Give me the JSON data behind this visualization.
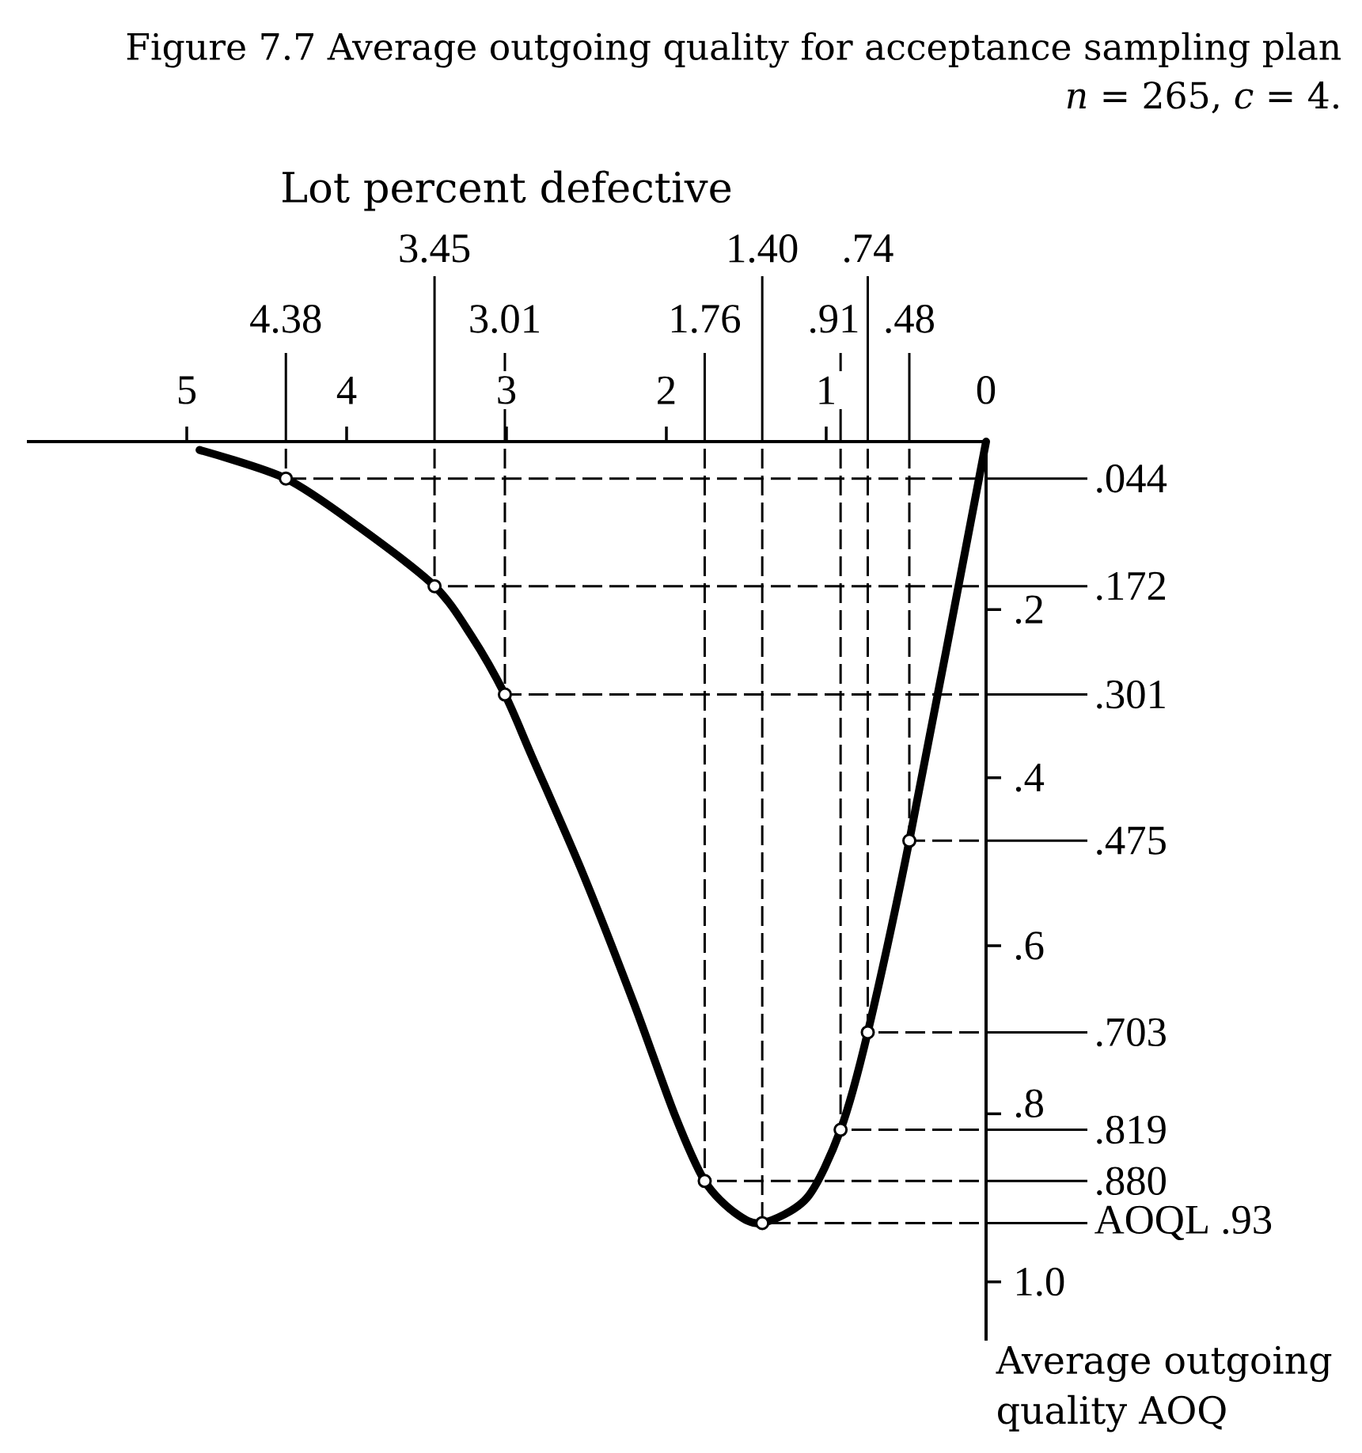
{
  "chart_data": {
    "type": "line",
    "title": "Figure 7.7 Average outgoing quality for acceptance sampling plan *n* = 265, *c* = 4.",
    "xlabel": "Lot percent defective",
    "ylabel": "Average outgoing quality AOQ",
    "xlim": [
      6.0,
      0
    ],
    "ylim": [
      1.07,
      0
    ],
    "xticks": [
      0,
      1,
      2,
      3,
      4,
      5
    ],
    "yticks": [
      {
        "value": 0.2,
        "label": ".2"
      },
      {
        "value": 0.4,
        "label": ".4"
      },
      {
        "value": 0.6,
        "label": ".6"
      },
      {
        "value": 0.8,
        "label": ".8"
      },
      {
        "value": 1.0,
        "label": "1.0"
      }
    ],
    "series": [
      {
        "color": "#000000",
        "marker": "none",
        "x": [
          0,
          0.48,
          0.74,
          0.91,
          1.12,
          1.4,
          1.57,
          1.76,
          1.95,
          2.2,
          2.52,
          2.84,
          3.01,
          3.22,
          3.45,
          3.92,
          4.38,
          4.92
        ],
        "values": [
          0,
          0.475,
          0.703,
          0.819,
          0.9,
          0.93,
          0.918,
          0.88,
          0.8,
          0.67,
          0.515,
          0.375,
          0.301,
          0.231,
          0.172,
          0.102,
          0.044,
          0.01
        ]
      },
      {
        "type": "scatter",
        "color": "#000000",
        "marker": "circle",
        "x": [
          0.48,
          0.74,
          0.91,
          1.4,
          1.76,
          3.01,
          3.45,
          4.38
        ],
        "values": [
          0.475,
          0.703,
          0.819,
          0.93,
          0.88,
          0.301,
          0.172,
          0.044
        ]
      }
    ],
    "ref_lines": [
      {
        "axis": "x",
        "value": 0.48,
        "label": ".48",
        "line_style": "dashed"
      },
      {
        "axis": "x",
        "value": 0.74,
        "label": ".74",
        "line_style": "dashed"
      },
      {
        "axis": "x",
        "value": 0.91,
        "label": ".91",
        "line_style": "dashed"
      },
      {
        "axis": "x",
        "value": 1.4,
        "label": "1.40",
        "line_style": "dashed"
      },
      {
        "axis": "x",
        "value": 1.76,
        "label": "1.76",
        "line_style": "dashed"
      },
      {
        "axis": "x",
        "value": 3.01,
        "label": "3.01",
        "line_style": "dashed"
      },
      {
        "axis": "x",
        "value": 3.45,
        "label": "3.45",
        "line_style": "dashed"
      },
      {
        "axis": "x",
        "value": 4.38,
        "label": "4.38",
        "line_style": "dashed"
      },
      {
        "axis": "y",
        "value": 0.044,
        "label": ".044",
        "line_style": "dashed"
      },
      {
        "axis": "y",
        "value": 0.172,
        "label": ".172",
        "line_style": "dashed"
      },
      {
        "axis": "y",
        "value": 0.301,
        "label": ".301",
        "line_style": "dashed"
      },
      {
        "axis": "y",
        "value": 0.475,
        "label": ".475",
        "line_style": "dashed"
      },
      {
        "axis": "y",
        "value": 0.703,
        "label": ".703",
        "line_style": "dashed"
      },
      {
        "axis": "y",
        "value": 0.819,
        "label": ".819",
        "line_style": "dashed"
      },
      {
        "axis": "y",
        "value": 0.88,
        "label": ".880",
        "line_style": "dashed"
      },
      {
        "axis": "y",
        "value": 0.93,
        "label": "AOQL .93",
        "line_style": "dashed"
      }
    ]
  }
}
